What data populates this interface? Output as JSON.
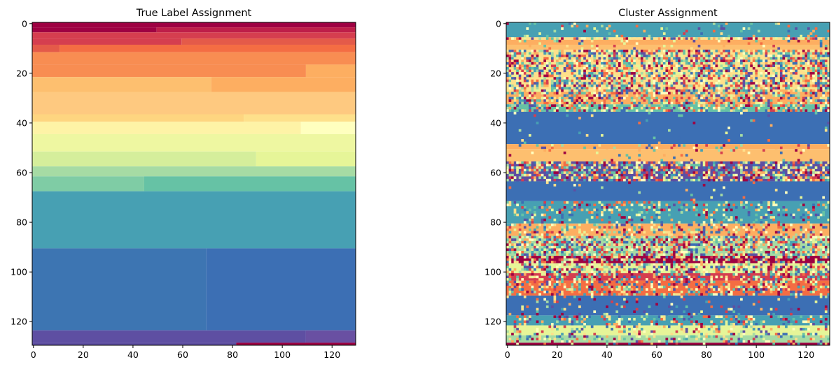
{
  "chart_data": [
    {
      "type": "heatmap",
      "title": "True Label Assignment",
      "xlim": [
        0,
        130
      ],
      "ylim": [
        130,
        0
      ],
      "x_ticks": [
        0,
        20,
        40,
        60,
        80,
        100,
        120
      ],
      "y_ticks": [
        0,
        20,
        40,
        60,
        80,
        100,
        120
      ],
      "colormap": "Spectral",
      "bands": [
        {
          "y": [
            0,
            2
          ],
          "color": "#9e0142",
          "step_x": null
        },
        {
          "y": [
            2,
            4
          ],
          "color": "#be1f49",
          "step_x": 50,
          "before": "#9e0142"
        },
        {
          "y": [
            4,
            6.5
          ],
          "color": "#d53e4f"
        },
        {
          "y": [
            6.5,
            9
          ],
          "color": "#e45a49",
          "step_x": 60,
          "before": "#d53e4f"
        },
        {
          "y": [
            9,
            12
          ],
          "color": "#f46d43",
          "step_x": 11,
          "before": "#e45a49"
        },
        {
          "y": [
            12,
            17
          ],
          "color": "#f88d52"
        },
        {
          "y": [
            17,
            22
          ],
          "color": "#fdae61",
          "step_x": 110,
          "before": "#f88d52"
        },
        {
          "y": [
            22,
            28
          ],
          "color": "#fdae61",
          "step_x": 72,
          "before": "#fdbf6f"
        },
        {
          "y": [
            28,
            37
          ],
          "color": "#fec980"
        },
        {
          "y": [
            37,
            40
          ],
          "color": "#fee08b",
          "step_x": 85,
          "before": "#fed580"
        },
        {
          "y": [
            40,
            45
          ],
          "color": "#ffffbf",
          "step_x": 108,
          "before": "#fef3a6"
        },
        {
          "y": [
            45,
            52
          ],
          "color": "#eef7a1"
        },
        {
          "y": [
            52,
            58
          ],
          "color": "#e6f598",
          "step_x": 90,
          "before": "#d5ee9b"
        },
        {
          "y": [
            58,
            62
          ],
          "color": "#a6dba4"
        },
        {
          "y": [
            62,
            68
          ],
          "color": "#66c2a5",
          "step_x": 45,
          "before": "#7fcca5"
        },
        {
          "y": [
            68,
            91
          ],
          "color": "#47a0b3"
        },
        {
          "y": [
            91,
            124
          ],
          "color": "#3c6fb4",
          "step_x": 70,
          "before": "#3d75b2"
        },
        {
          "y": [
            124,
            129
          ],
          "color": "#6950a2",
          "step_x": 110,
          "before": "#5e4fa2"
        },
        {
          "y": [
            129,
            130
          ],
          "color": "#9e0142",
          "step_x": 82,
          "before": "#5e4fa2"
        }
      ]
    },
    {
      "type": "heatmap",
      "title": "Cluster Assignment",
      "xlim": [
        0,
        130
      ],
      "ylim": [
        130,
        0
      ],
      "x_ticks": [
        0,
        20,
        40,
        60,
        80,
        100,
        120
      ],
      "y_ticks": [
        0,
        20,
        40,
        60,
        80,
        100,
        120
      ],
      "colormap": "Spectral",
      "rows": [
        {
          "y": [
            0,
            6
          ],
          "base": "#47a0b3",
          "noise": 0.1
        },
        {
          "y": [
            6,
            7
          ],
          "base": "#fee08b",
          "noise": 0.5
        },
        {
          "y": [
            7,
            9
          ],
          "base": "#fdae61",
          "noise": 0.1
        },
        {
          "y": [
            9,
            11
          ],
          "base": "#fdbf6f",
          "noise": 0.1
        },
        {
          "y": [
            11,
            28
          ],
          "base": "#fee08b",
          "noise": 0.7
        },
        {
          "y": [
            28,
            33
          ],
          "base": "#fdae61",
          "noise": 0.6
        },
        {
          "y": [
            33,
            36
          ],
          "base": "#66c2a5",
          "noise": 0.55
        },
        {
          "y": [
            36,
            49
          ],
          "base": "#3c6fb4",
          "noise": 0.02
        },
        {
          "y": [
            49,
            51
          ],
          "base": "#fdae61",
          "noise": 0.15
        },
        {
          "y": [
            51,
            56
          ],
          "base": "#fdbf6f",
          "noise": 0.05
        },
        {
          "y": [
            56,
            64
          ],
          "base": "#5e4fa2",
          "noise": 0.7
        },
        {
          "y": [
            64,
            72
          ],
          "base": "#3c6fb4",
          "noise": 0.03
        },
        {
          "y": [
            72,
            81
          ],
          "base": "#47a0b3",
          "noise": 0.25
        },
        {
          "y": [
            81,
            86
          ],
          "base": "#fdae61",
          "noise": 0.35
        },
        {
          "y": [
            86,
            94
          ],
          "base": "#a6dba4",
          "noise": 0.7
        },
        {
          "y": [
            94,
            97
          ],
          "base": "#9e0142",
          "noise": 0.5
        },
        {
          "y": [
            97,
            101
          ],
          "base": "#e6f598",
          "noise": 0.6
        },
        {
          "y": [
            101,
            104
          ],
          "base": "#d53e4f",
          "noise": 0.5
        },
        {
          "y": [
            104,
            110
          ],
          "base": "#f46d43",
          "noise": 0.5
        },
        {
          "y": [
            110,
            118
          ],
          "base": "#3c6fb4",
          "noise": 0.1
        },
        {
          "y": [
            118,
            122
          ],
          "base": "#47a0b3",
          "noise": 0.3
        },
        {
          "y": [
            122,
            126
          ],
          "base": "#e6f598",
          "noise": 0.25
        },
        {
          "y": [
            126,
            129
          ],
          "base": "#a6dba4",
          "noise": 0.3
        },
        {
          "y": [
            129,
            130
          ],
          "base": "#9e0142",
          "noise": 0.1
        }
      ],
      "noise_palette": [
        "#9e0142",
        "#d53e4f",
        "#f46d43",
        "#fdae61",
        "#fee08b",
        "#ffffbf",
        "#e6f598",
        "#a6dba4",
        "#66c2a5",
        "#47a0b3",
        "#3c6fb4",
        "#5e4fa2"
      ]
    }
  ]
}
